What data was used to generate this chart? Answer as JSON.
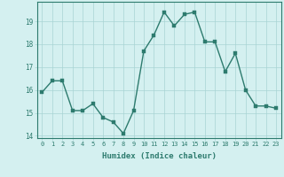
{
  "x": [
    0,
    1,
    2,
    3,
    4,
    5,
    6,
    7,
    8,
    9,
    10,
    11,
    12,
    13,
    14,
    15,
    16,
    17,
    18,
    19,
    20,
    21,
    22,
    23
  ],
  "y": [
    15.9,
    16.4,
    16.4,
    15.1,
    15.1,
    15.4,
    14.8,
    14.6,
    14.1,
    15.1,
    17.7,
    18.4,
    19.4,
    18.8,
    19.3,
    19.4,
    18.1,
    18.1,
    16.8,
    17.6,
    16.0,
    15.3,
    15.3,
    15.2
  ],
  "xlabel": "Humidex (Indice chaleur)",
  "line_color": "#2d7b6e",
  "marker_color": "#2d7b6e",
  "bg_color": "#d4f0f0",
  "grid_color": "#a8d4d4",
  "text_color": "#2d7b6e",
  "ylim": [
    13.9,
    19.85
  ],
  "xlim": [
    -0.5,
    23.5
  ],
  "yticks": [
    14,
    15,
    16,
    17,
    18,
    19
  ],
  "xticks": [
    0,
    1,
    2,
    3,
    4,
    5,
    6,
    7,
    8,
    9,
    10,
    11,
    12,
    13,
    14,
    15,
    16,
    17,
    18,
    19,
    20,
    21,
    22,
    23
  ],
  "linewidth": 1.0,
  "markersize": 2.5,
  "tick_fontsize": 5.0,
  "xlabel_fontsize": 6.5
}
